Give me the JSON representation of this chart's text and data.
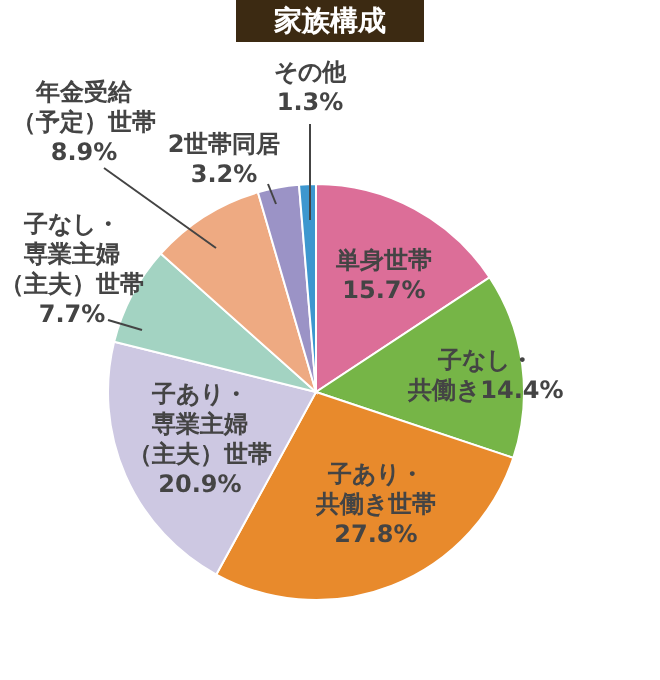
{
  "chart_data": {
    "type": "pie",
    "title": "家族構成",
    "categories": [
      "単身世帯",
      "子なし・共働き",
      "子あり・共働き世帯",
      "子あり・専業主婦（主夫）世帯",
      "子なし・専業主婦（主夫）世帯",
      "年金受給（予定）世帯",
      "2世帯同居",
      "その他"
    ],
    "values": [
      15.7,
      14.4,
      27.8,
      20.9,
      7.7,
      8.9,
      3.2,
      1.3
    ],
    "value_labels": [
      "15.7%",
      "14.4%",
      "27.8%",
      "20.9%",
      "7.7%",
      "8.9%",
      "3.2%",
      "1.3%"
    ],
    "colors": [
      "#dc6e98",
      "#76b547",
      "#e88a2c",
      "#cdc8e2",
      "#a3d3c2",
      "#eeaa82",
      "#9b93c6",
      "#3d97cf"
    ]
  }
}
